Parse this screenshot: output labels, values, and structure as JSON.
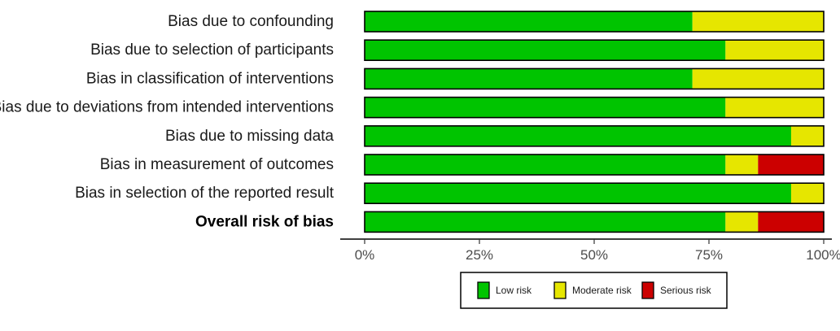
{
  "chart_data": {
    "type": "bar",
    "orientation": "horizontal",
    "stacked": true,
    "categories": [
      "Bias due to confounding",
      "Bias due to selection of participants",
      "Bias in classification of interventions",
      "Bias due to deviations from intended interventions",
      "Bias due to missing data",
      "Bias in measurement of outcomes",
      "Bias in selection of the reported result",
      "Overall risk of bias"
    ],
    "bold_categories": [
      "Overall risk of bias"
    ],
    "series": [
      {
        "name": "Low risk",
        "color": "#00c400",
        "values": [
          71.4,
          78.6,
          71.4,
          78.6,
          92.9,
          78.6,
          92.9,
          78.6
        ]
      },
      {
        "name": "Moderate risk",
        "color": "#e6e600",
        "values": [
          28.6,
          21.4,
          28.6,
          21.4,
          7.1,
          7.1,
          7.1,
          7.1
        ]
      },
      {
        "name": "Serious risk",
        "color": "#cc0000",
        "values": [
          0,
          0,
          0,
          0,
          0,
          14.3,
          0,
          14.3
        ]
      }
    ],
    "x_ticks": [
      "0%",
      "25%",
      "50%",
      "75%",
      "100%"
    ],
    "xlim": [
      0,
      100
    ],
    "grid": false,
    "legend_position": "bottom"
  }
}
